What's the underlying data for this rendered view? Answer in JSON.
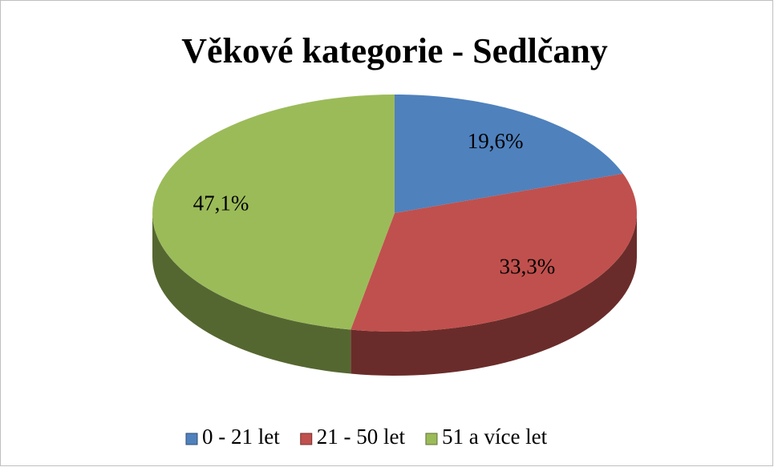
{
  "chart_data": {
    "type": "pie",
    "title": "Věkové kategorie - Sedlčany",
    "categories": [
      "0 - 21 let",
      "21 - 50 let",
      "51 a více let"
    ],
    "values": [
      19.6,
      33.3,
      47.1
    ],
    "value_labels": [
      "19,6%",
      "33,3%",
      "47,1%"
    ],
    "colors": [
      "#4f81bd",
      "#c0504d",
      "#9bbb59"
    ],
    "legend": "bottom"
  }
}
